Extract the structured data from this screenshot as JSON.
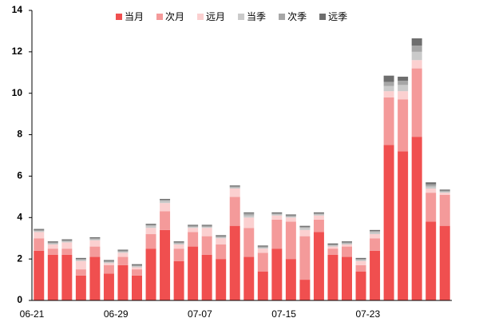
{
  "chart_data": {
    "type": "stacked_bar",
    "categories": [
      "06-21",
      null,
      null,
      null,
      null,
      null,
      "06-29",
      null,
      null,
      null,
      null,
      null,
      "07-07",
      null,
      null,
      null,
      null,
      null,
      "07-15",
      null,
      null,
      null,
      null,
      null,
      "07-23",
      null,
      null,
      null,
      null,
      null
    ],
    "series": [
      {
        "name": "当月",
        "color": "#f04f4f",
        "values": [
          2.4,
          2.2,
          2.2,
          1.2,
          2.1,
          1.3,
          1.7,
          1.2,
          2.5,
          3.4,
          1.9,
          2.6,
          2.2,
          2.0,
          3.6,
          2.1,
          1.4,
          2.5,
          2.0,
          1.0,
          3.3,
          2.2,
          2.1,
          1.4,
          2.4,
          7.5,
          7.2,
          7.9,
          3.8,
          3.6
        ]
      },
      {
        "name": "次月",
        "color": "#f49a9a",
        "values": [
          0.6,
          0.3,
          0.3,
          0.3,
          0.5,
          0.4,
          0.4,
          0.3,
          0.7,
          0.9,
          0.6,
          0.7,
          0.9,
          0.7,
          1.4,
          1.4,
          0.9,
          1.4,
          1.8,
          2.1,
          0.6,
          0.3,
          0.5,
          0.3,
          0.6,
          2.3,
          2.5,
          3.3,
          1.4,
          1.5
        ]
      },
      {
        "name": "远月",
        "color": "#fbd0d0",
        "values": [
          0.3,
          0.2,
          0.3,
          0.4,
          0.3,
          0.1,
          0.2,
          0.1,
          0.3,
          0.4,
          0.2,
          0.2,
          0.4,
          0.3,
          0.4,
          0.5,
          0.2,
          0.2,
          0.2,
          0.3,
          0.2,
          0.1,
          0.1,
          0.2,
          0.2,
          0.3,
          0.4,
          0.4,
          0.2,
          0.1
        ]
      },
      {
        "name": "当季",
        "color": "#cacaca",
        "values": [
          0.05,
          0.05,
          0.05,
          0.05,
          0.05,
          0.05,
          0.05,
          0.05,
          0.1,
          0.1,
          0.05,
          0.05,
          0.05,
          0.05,
          0.05,
          0.1,
          0.05,
          0.05,
          0.05,
          0.1,
          0.05,
          0.05,
          0.05,
          0.05,
          0.1,
          0.25,
          0.3,
          0.4,
          0.1,
          0.05
        ]
      },
      {
        "name": "次季",
        "color": "#a6a6a6",
        "values": [
          0.05,
          0.05,
          0.05,
          0.05,
          0.05,
          0.05,
          0.05,
          0.05,
          0.05,
          0.05,
          0.05,
          0.05,
          0.05,
          0.05,
          0.05,
          0.1,
          0.05,
          0.05,
          0.05,
          0.05,
          0.05,
          0.05,
          0.05,
          0.05,
          0.05,
          0.2,
          0.2,
          0.3,
          0.1,
          0.05
        ]
      },
      {
        "name": "远季",
        "color": "#6e6e6e",
        "values": [
          0.05,
          0.05,
          0.05,
          0.05,
          0.05,
          0.05,
          0.05,
          0.05,
          0.05,
          0.05,
          0.05,
          0.05,
          0.05,
          0.05,
          0.05,
          0.05,
          0.05,
          0.05,
          0.05,
          0.05,
          0.05,
          0.05,
          0.05,
          0.05,
          0.05,
          0.3,
          0.2,
          0.35,
          0.1,
          0.05
        ]
      }
    ],
    "ylim": [
      0,
      14
    ],
    "yticks": [
      0,
      2,
      4,
      6,
      8,
      10,
      12,
      14
    ],
    "grid": false,
    "legend": "top"
  }
}
